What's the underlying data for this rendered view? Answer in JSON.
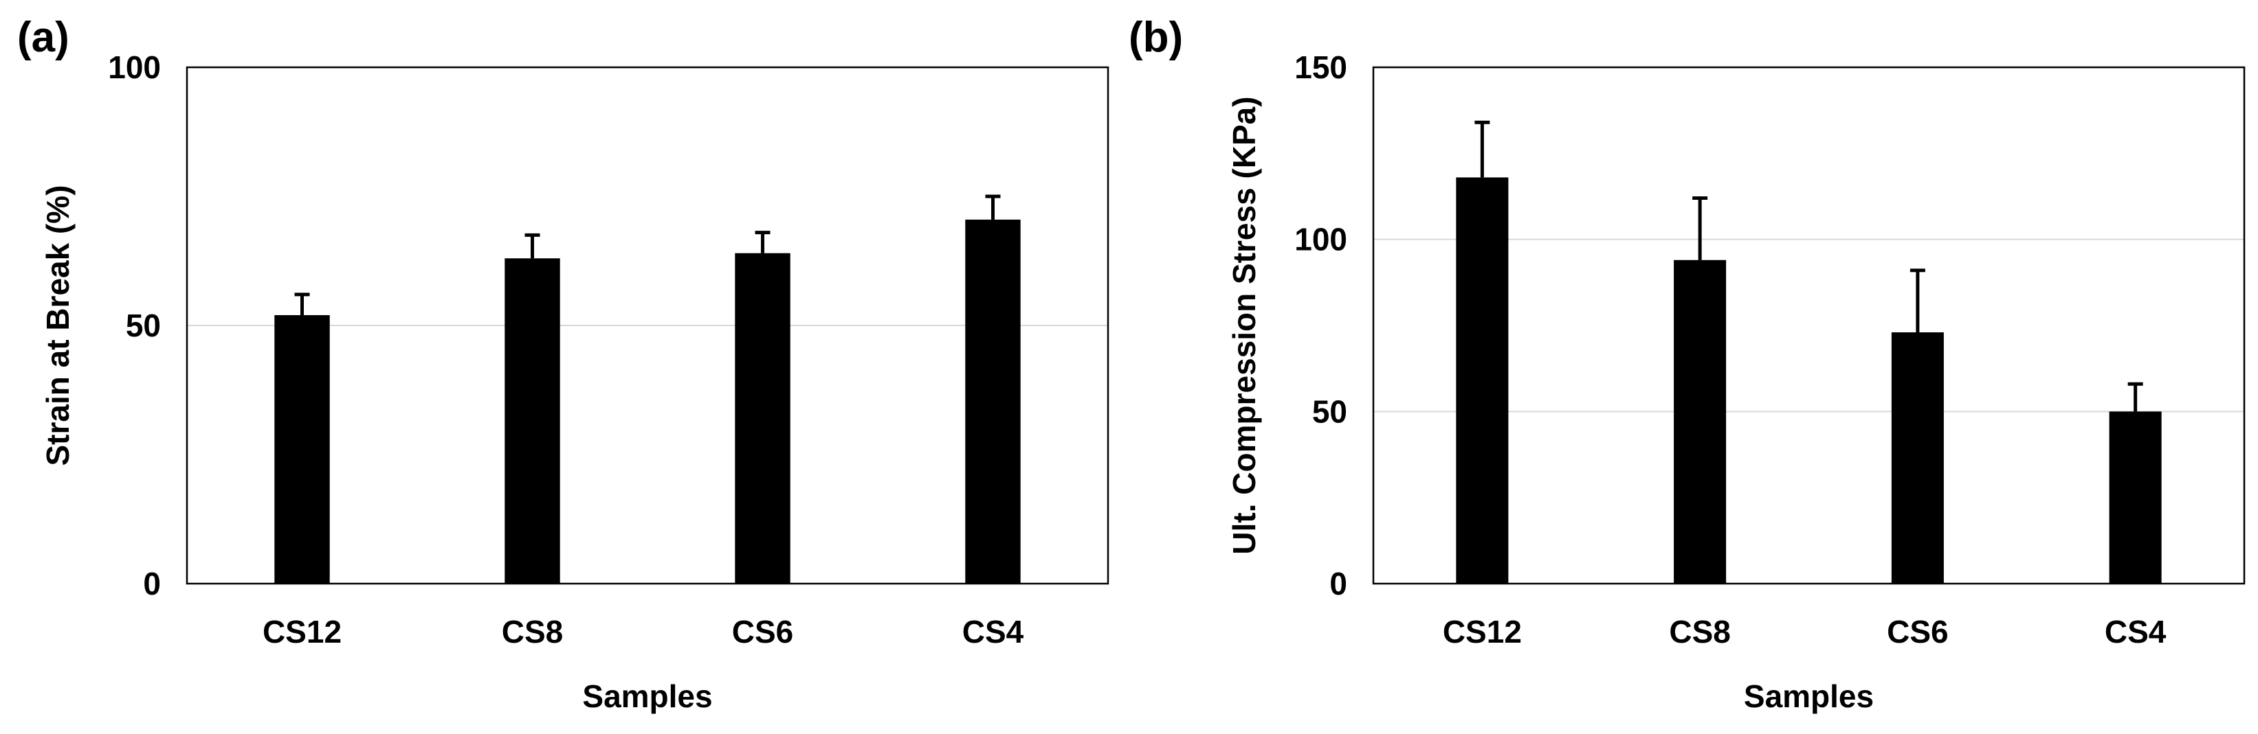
{
  "chart_data": [
    {
      "type": "bar",
      "panel_label": "(a)",
      "categories": [
        "CS12",
        "CS8",
        "CS6",
        "CS4"
      ],
      "values": [
        52,
        63,
        64,
        70.5
      ],
      "error_plus": [
        4,
        4.5,
        4,
        4.5
      ],
      "xlabel": "Samples",
      "ylabel": "Strain at Break (%)",
      "ylim": [
        0,
        100
      ],
      "yticks": [
        0,
        50,
        100
      ],
      "grid": "horizontal",
      "bar_color": "#000000"
    },
    {
      "type": "bar",
      "panel_label": "(b)",
      "categories": [
        "CS12",
        "CS8",
        "CS6",
        "CS4"
      ],
      "values": [
        118,
        94,
        73,
        50
      ],
      "error_plus": [
        16,
        18,
        18,
        8
      ],
      "xlabel": "Samples",
      "ylabel": "Ult. Compression Stress (KPa)",
      "ylim": [
        0,
        150
      ],
      "yticks": [
        0,
        50,
        100,
        150
      ],
      "grid": "horizontal",
      "bar_color": "#000000"
    }
  ]
}
